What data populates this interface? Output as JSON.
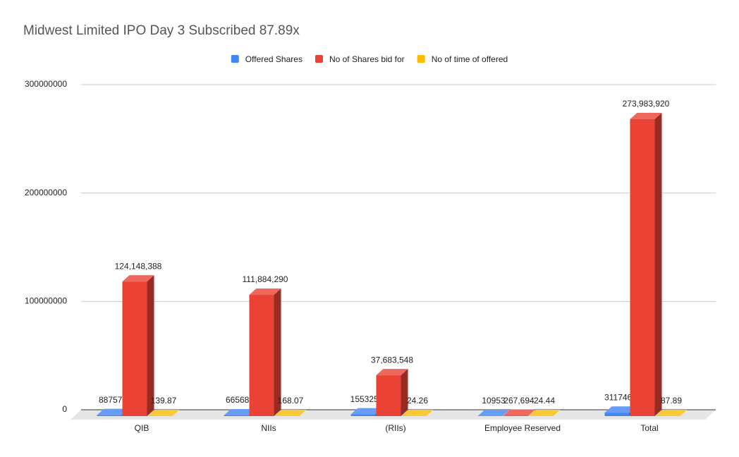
{
  "chart_data": {
    "type": "bar3d",
    "title": "Midwest Limited IPO Day 3 Subscribed 87.89x",
    "categories": [
      "QIB",
      "NIIs",
      "(RIIs)",
      "Employee Reserved",
      "Total"
    ],
    "series": [
      {
        "name": "Offered Shares",
        "color": "#4285f4",
        "values": [
          887572,
          665681,
          1553255,
          10953,
          3117460
        ]
      },
      {
        "name": "No of Shares bid for",
        "color": "#ea4335",
        "values": [
          124148388,
          111884290,
          37683548,
          267694,
          273983920
        ],
        "value_labels": [
          "124,148,388",
          "111,884,290",
          "37,683,548",
          "267,694",
          "273,983,920"
        ]
      },
      {
        "name": "No of time of offered",
        "color": "#fbbc04",
        "values": [
          139.87,
          168.07,
          24.26,
          24.44,
          87.89
        ]
      }
    ],
    "ylim": [
      0,
      300000000
    ],
    "yticks": [
      0,
      100000000,
      200000000,
      300000000
    ],
    "grid": true,
    "legend": "top"
  }
}
